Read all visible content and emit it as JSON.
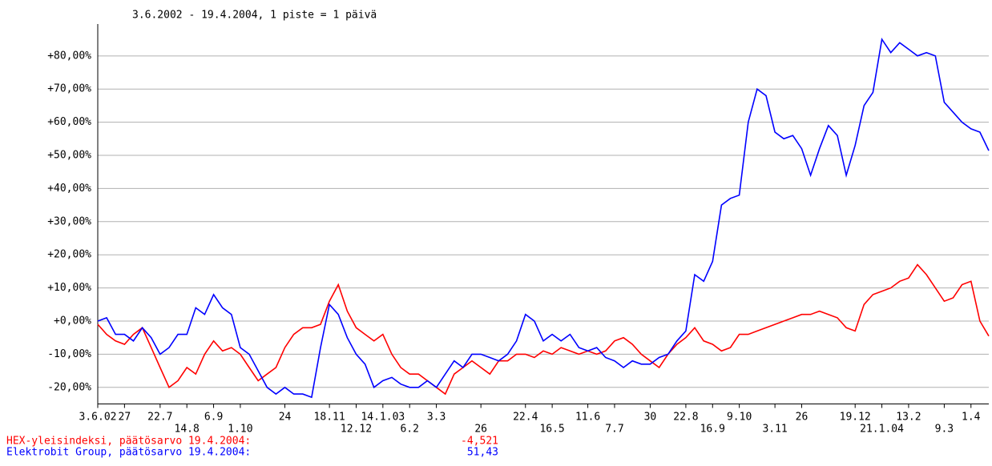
{
  "chart_data": {
    "type": "line",
    "title": "3.6.2002 - 19.4.2004, 1 piste = 1 päivä",
    "categories": [
      "3.6.02",
      null,
      null,
      "27",
      null,
      null,
      null,
      "22.7",
      null,
      null,
      "14.8",
      null,
      null,
      "6.9",
      null,
      null,
      "1.10",
      null,
      null,
      null,
      null,
      "24",
      null,
      null,
      null,
      null,
      "18.11",
      null,
      null,
      "12.12",
      null,
      null,
      "14.1.03",
      null,
      null,
      "6.2",
      null,
      null,
      "3.3",
      null,
      null,
      null,
      null,
      "26",
      null,
      null,
      null,
      null,
      "22.4",
      null,
      null,
      "16.5",
      null,
      null,
      null,
      "11.6",
      null,
      null,
      "7.7",
      null,
      null,
      null,
      "30",
      null,
      null,
      null,
      "22.8",
      null,
      null,
      "16.9",
      null,
      null,
      "9.10",
      null,
      null,
      null,
      "3.11",
      null,
      null,
      "26",
      null,
      null,
      null,
      null,
      null,
      "19.12",
      null,
      null,
      "21.1.04",
      null,
      null,
      "13.2",
      null,
      null,
      null,
      "9.3",
      null,
      null,
      "1.4",
      null,
      null
    ],
    "series": [
      {
        "name": "HEX-yleisindeksi, päätösarvo 19.4.2004:",
        "color": "#ff0000",
        "final_value_label": "-4,521",
        "values": [
          -1,
          -4,
          -6,
          -7,
          -4,
          -2,
          -8,
          -14,
          -20,
          -18,
          -14,
          -16,
          -10,
          -6,
          -9,
          -8,
          -10,
          -14,
          -18,
          -16,
          -14,
          -8,
          -4,
          -2,
          -2,
          -1,
          6,
          11,
          3,
          -2,
          -4,
          -6,
          -4,
          -10,
          -14,
          -16,
          -16,
          -18,
          -20,
          -22,
          -16,
          -14,
          -12,
          -14,
          -16,
          -12,
          -12,
          -10,
          -10,
          -11,
          -9,
          -10,
          -8,
          -9,
          -10,
          -9,
          -10,
          -9,
          -6,
          -5,
          -7,
          -10,
          -12,
          -14,
          -10,
          -7,
          -5,
          -2,
          -6,
          -7,
          -9,
          -8,
          -4,
          -4,
          -3,
          -2,
          -1,
          0,
          1,
          2,
          2,
          3,
          2,
          1,
          -2,
          -3,
          5,
          8,
          9,
          10,
          12,
          13,
          17,
          14,
          10,
          6,
          7,
          11,
          12,
          0,
          -4.521
        ]
      },
      {
        "name": "Elektrobit Group, päätösarvo 19.4.2004:",
        "color": "#0000ff",
        "final_value_label": "51,43",
        "values": [
          0,
          1,
          -4,
          -4,
          -6,
          -2,
          -5,
          -10,
          -8,
          -4,
          -4,
          4,
          2,
          8,
          4,
          2,
          -8,
          -10,
          -15,
          -20,
          -22,
          -20,
          -22,
          -22,
          -23,
          -8,
          5,
          2,
          -5,
          -10,
          -13,
          -20,
          -18,
          -17,
          -19,
          -20,
          -20,
          -18,
          -20,
          -16,
          -12,
          -14,
          -10,
          -10,
          -11,
          -12,
          -10,
          -6,
          2,
          0,
          -6,
          -4,
          -6,
          -4,
          -8,
          -9,
          -8,
          -11,
          -12,
          -14,
          -12,
          -13,
          -13,
          -11,
          -10,
          -6,
          -3,
          14,
          12,
          18,
          35,
          37,
          38,
          60,
          70,
          68,
          57,
          55,
          56,
          52,
          44,
          52,
          59,
          56,
          44,
          53,
          65,
          69,
          85,
          81,
          84,
          82,
          80,
          81,
          80,
          66,
          63,
          60,
          58,
          57,
          51.43
        ]
      }
    ],
    "ylim": [
      -25,
      88
    ],
    "yticks": [
      {
        "value": -20,
        "label": "-20,00%"
      },
      {
        "value": -10,
        "label": "-10,00%"
      },
      {
        "value": 0,
        "label": "+0,00%"
      },
      {
        "value": 10,
        "label": "+10,00%"
      },
      {
        "value": 20,
        "label": "+20,00%"
      },
      {
        "value": 30,
        "label": "+30,00%"
      },
      {
        "value": 40,
        "label": "+40,00%"
      },
      {
        "value": 50,
        "label": "+50,00%"
      },
      {
        "value": 60,
        "label": "+60,00%"
      },
      {
        "value": 70,
        "label": "+70,00%"
      },
      {
        "value": 80,
        "label": "+80,00%"
      }
    ],
    "grid": true
  }
}
